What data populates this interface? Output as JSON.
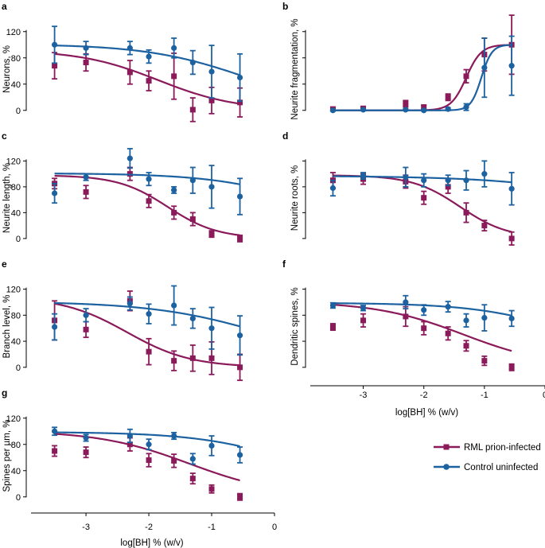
{
  "figure": {
    "x_axis_title": "log[BH] % (w/v)",
    "x_tick_labels": [
      "-3",
      "-2",
      "-1",
      "0"
    ],
    "legend": [
      {
        "label": "RML prion-infected",
        "series": "rml"
      },
      {
        "label": "Control uninfected",
        "series": "ctrl"
      }
    ],
    "colors": {
      "rml": "#8b1a5a",
      "ctrl": "#1d62a0"
    }
  },
  "chart_data": [
    {
      "id": "a",
      "letter": "a",
      "type": "scatter",
      "ylabel": "Neurons, %",
      "xlabel": "",
      "xlim": [
        -3.9,
        0
      ],
      "ylim": [
        -10,
        150
      ],
      "yticks": [
        0,
        40,
        80,
        120
      ],
      "yticklabels": [
        "0",
        "40",
        "80",
        "120"
      ],
      "series": [
        {
          "name": "RML prion-infected",
          "key": "rml",
          "x": [
            -3.5,
            -3.0,
            -2.3,
            -2.0,
            -1.6,
            -1.3,
            -1.0,
            -0.55
          ],
          "y": [
            68,
            73,
            58,
            45,
            52,
            1,
            15,
            12
          ],
          "err": [
            20,
            13,
            18,
            15,
            35,
            18,
            20,
            22
          ],
          "curve": {
            "type": "decay",
            "top": 92,
            "bottom": 0,
            "ec50": -1.85,
            "slope": 0.7
          }
        },
        {
          "name": "Control uninfected",
          "key": "ctrl",
          "x": [
            -3.5,
            -3.0,
            -2.3,
            -2.0,
            -1.6,
            -1.3,
            -1.0,
            -0.55
          ],
          "y": [
            100,
            95,
            95,
            82,
            95,
            73,
            59,
            50
          ],
          "err": [
            28,
            10,
            10,
            10,
            15,
            18,
            40,
            36
          ],
          "curve": {
            "type": "decay",
            "top": 101,
            "bottom": 0,
            "ec50": -0.45,
            "slope": 0.55
          }
        }
      ]
    },
    {
      "id": "b",
      "letter": "b",
      "type": "scatter",
      "ylabel": "Neurite fragmentation, %",
      "xlabel": "",
      "xlim": [
        -3.9,
        0
      ],
      "ylim": [
        -10,
        150
      ],
      "yticks": [
        0,
        40,
        80,
        120
      ],
      "yticklabels": [
        "",
        "",
        "",
        ""
      ],
      "series": [
        {
          "name": "RML prion-infected",
          "key": "rml",
          "x": [
            -3.5,
            -3.0,
            -2.3,
            -2.0,
            -1.6,
            -1.3,
            -1.0,
            -0.55
          ],
          "y": [
            2,
            3,
            10,
            5,
            20,
            52,
            85,
            100
          ],
          "err": [
            2,
            2,
            5,
            3,
            5,
            10,
            25,
            45
          ],
          "curve": {
            "type": "rise",
            "bottom": 0,
            "top": 100,
            "ec50": -1.3,
            "slope": 3.5
          }
        },
        {
          "name": "Control uninfected",
          "key": "ctrl",
          "x": [
            -3.5,
            -3.0,
            -2.3,
            -2.0,
            -1.6,
            -1.3,
            -1.0,
            -0.55
          ],
          "y": [
            0,
            1,
            1,
            0,
            2,
            5,
            65,
            68
          ],
          "err": [
            1,
            1,
            1,
            1,
            2,
            5,
            45,
            45
          ],
          "curve": {
            "type": "rise",
            "bottom": 0,
            "top": 100,
            "ec50": -1.05,
            "slope": 5
          }
        }
      ]
    },
    {
      "id": "c",
      "letter": "c",
      "type": "scatter",
      "ylabel": "Neurite length, %",
      "xlabel": "",
      "xlim": [
        -3.9,
        0
      ],
      "ylim": [
        -10,
        150
      ],
      "yticks": [
        0,
        40,
        80,
        120
      ],
      "yticklabels": [
        "0",
        "40",
        "80",
        "120"
      ],
      "series": [
        {
          "name": "RML prion-infected",
          "key": "rml",
          "x": [
            -3.5,
            -3.0,
            -2.3,
            -2.0,
            -1.6,
            -1.3,
            -1.0,
            -0.55
          ],
          "y": [
            85,
            72,
            100,
            58,
            40,
            30,
            7,
            0
          ],
          "err": [
            8,
            10,
            10,
            10,
            10,
            10,
            5,
            5
          ],
          "curve": {
            "type": "decay",
            "top": 98,
            "bottom": 0,
            "ec50": -1.7,
            "slope": 1.1
          }
        },
        {
          "name": "Control uninfected",
          "key": "ctrl",
          "x": [
            -3.5,
            -3.0,
            -2.3,
            -2.0,
            -1.6,
            -1.3,
            -1.0,
            -0.55
          ],
          "y": [
            70,
            95,
            124,
            92,
            75,
            90,
            80,
            65
          ],
          "err": [
            15,
            5,
            15,
            10,
            5,
            20,
            33,
            28
          ],
          "curve": {
            "type": "decay",
            "top": 101,
            "bottom": 0,
            "ec50": 0.7,
            "slope": 0.55
          }
        }
      ]
    },
    {
      "id": "d",
      "letter": "d",
      "type": "scatter",
      "ylabel": "Neurite roots, %",
      "xlabel": "",
      "xlim": [
        -3.9,
        0
      ],
      "ylim": [
        -10,
        150
      ],
      "yticks": [
        0,
        40,
        80,
        120
      ],
      "yticklabels": [
        "",
        "",
        "",
        ""
      ],
      "series": [
        {
          "name": "RML prion-infected",
          "key": "rml",
          "x": [
            -3.5,
            -3.0,
            -2.3,
            -2.0,
            -1.6,
            -1.3,
            -1.0,
            -0.55
          ],
          "y": [
            90,
            92,
            88,
            63,
            80,
            40,
            20,
            0
          ],
          "err": [
            12,
            8,
            10,
            10,
            10,
            15,
            8,
            10
          ],
          "curve": {
            "type": "decay",
            "top": 98,
            "bottom": 0,
            "ec50": -1.4,
            "slope": 1.1
          }
        },
        {
          "name": "Control uninfected",
          "key": "ctrl",
          "x": [
            -3.5,
            -3.0,
            -2.3,
            -2.0,
            -1.6,
            -1.3,
            -1.0,
            -0.55
          ],
          "y": [
            78,
            97,
            95,
            90,
            90,
            90,
            100,
            77
          ],
          "err": [
            12,
            5,
            15,
            10,
            8,
            15,
            20,
            25
          ],
          "curve": {
            "type": "decay",
            "top": 97,
            "bottom": 0,
            "ec50": 1.8,
            "slope": 0.4
          }
        }
      ]
    },
    {
      "id": "e",
      "letter": "e",
      "type": "scatter",
      "ylabel": "Branch level, %",
      "xlabel": "",
      "xlim": [
        -3.9,
        0
      ],
      "ylim": [
        -10,
        150
      ],
      "yticks": [
        0,
        40,
        80,
        120
      ],
      "yticklabels": [
        "0",
        "40",
        "80",
        "120"
      ],
      "series": [
        {
          "name": "RML prion-infected",
          "key": "rml",
          "x": [
            -3.5,
            -3.0,
            -2.3,
            -2.0,
            -1.6,
            -1.3,
            -1.0,
            -0.55
          ],
          "y": [
            72,
            58,
            102,
            24,
            10,
            14,
            14,
            0
          ],
          "err": [
            30,
            12,
            15,
            20,
            15,
            20,
            25,
            20
          ],
          "curve": {
            "type": "decay",
            "top": 108,
            "bottom": 0,
            "ec50": -2.35,
            "slope": 0.85
          }
        },
        {
          "name": "Control uninfected",
          "key": "ctrl",
          "x": [
            -3.5,
            -3.0,
            -2.3,
            -2.0,
            -1.6,
            -1.3,
            -1.0,
            -0.55
          ],
          "y": [
            62,
            80,
            98,
            82,
            95,
            75,
            60,
            49
          ],
          "err": [
            20,
            10,
            10,
            15,
            30,
            15,
            32,
            30
          ],
          "curve": {
            "type": "decay",
            "top": 101,
            "bottom": 0,
            "ec50": -0.1,
            "slope": 0.48
          }
        }
      ]
    },
    {
      "id": "f",
      "letter": "f",
      "type": "scatter",
      "ylabel": "Dendritic spines, %",
      "xlabel": "log[BH] % (w/v)",
      "xlim": [
        -3.9,
        0
      ],
      "ylim": [
        -10,
        150
      ],
      "yticks": [
        0,
        40,
        80,
        120
      ],
      "yticklabels": [
        "",
        "",
        "",
        ""
      ],
      "xticks": [
        -3,
        -2,
        -1,
        0
      ],
      "xticklabels": [
        "-3",
        "-2",
        "-1",
        "0"
      ],
      "series": [
        {
          "name": "RML prion-infected",
          "key": "rml",
          "x": [
            -3.5,
            -3.0,
            -2.3,
            -2.0,
            -1.6,
            -1.3,
            -1.0,
            -0.55
          ],
          "y": [
            62,
            72,
            78,
            60,
            52,
            33,
            10,
            0
          ],
          "err": [
            5,
            10,
            15,
            10,
            10,
            8,
            7,
            5
          ],
          "curve": {
            "type": "decay",
            "top": 101,
            "bottom": 0,
            "ec50": -1.35,
            "slope": 0.6
          }
        },
        {
          "name": "Control uninfected",
          "key": "ctrl",
          "x": [
            -3.5,
            -3.0,
            -2.3,
            -2.0,
            -1.6,
            -1.3,
            -1.0,
            -0.55
          ],
          "y": [
            95,
            91,
            100,
            88,
            93,
            72,
            76,
            75
          ],
          "err": [
            4,
            4,
            10,
            8,
            8,
            10,
            20,
            12
          ],
          "curve": {
            "type": "decay",
            "top": 99,
            "bottom": 0,
            "ec50": 0.55,
            "slope": 0.55
          }
        }
      ]
    },
    {
      "id": "g",
      "letter": "g",
      "type": "scatter",
      "ylabel": "Spines per µm, %",
      "xlabel": "log[BH] % (w/v)",
      "xlim": [
        -3.9,
        0
      ],
      "ylim": [
        -10,
        150
      ],
      "yticks": [
        0,
        40,
        80,
        120
      ],
      "yticklabels": [
        "0",
        "40",
        "80",
        "120"
      ],
      "xticks": [
        -3,
        -2,
        -1,
        0
      ],
      "xticklabels": [
        "-3",
        "-2",
        "-1",
        "0"
      ],
      "series": [
        {
          "name": "RML prion-infected",
          "key": "rml",
          "x": [
            -3.5,
            -3.0,
            -2.3,
            -2.0,
            -1.6,
            -1.3,
            -1.0,
            -0.55
          ],
          "y": [
            70,
            68,
            80,
            56,
            55,
            28,
            12,
            0
          ],
          "err": [
            8,
            8,
            10,
            10,
            10,
            8,
            6,
            5
          ],
          "curve": {
            "type": "decay",
            "top": 101,
            "bottom": 0,
            "ec50": -1.35,
            "slope": 0.6
          }
        },
        {
          "name": "Control uninfected",
          "key": "ctrl",
          "x": [
            -3.5,
            -3.0,
            -2.3,
            -2.0,
            -1.6,
            -1.3,
            -1.0,
            -0.55
          ],
          "y": [
            100,
            90,
            93,
            80,
            93,
            58,
            78,
            64
          ],
          "err": [
            6,
            5,
            10,
            8,
            5,
            8,
            15,
            12
          ],
          "curve": {
            "type": "decay",
            "top": 99,
            "bottom": 0,
            "ec50": 0.45,
            "slope": 0.55
          }
        }
      ]
    }
  ]
}
